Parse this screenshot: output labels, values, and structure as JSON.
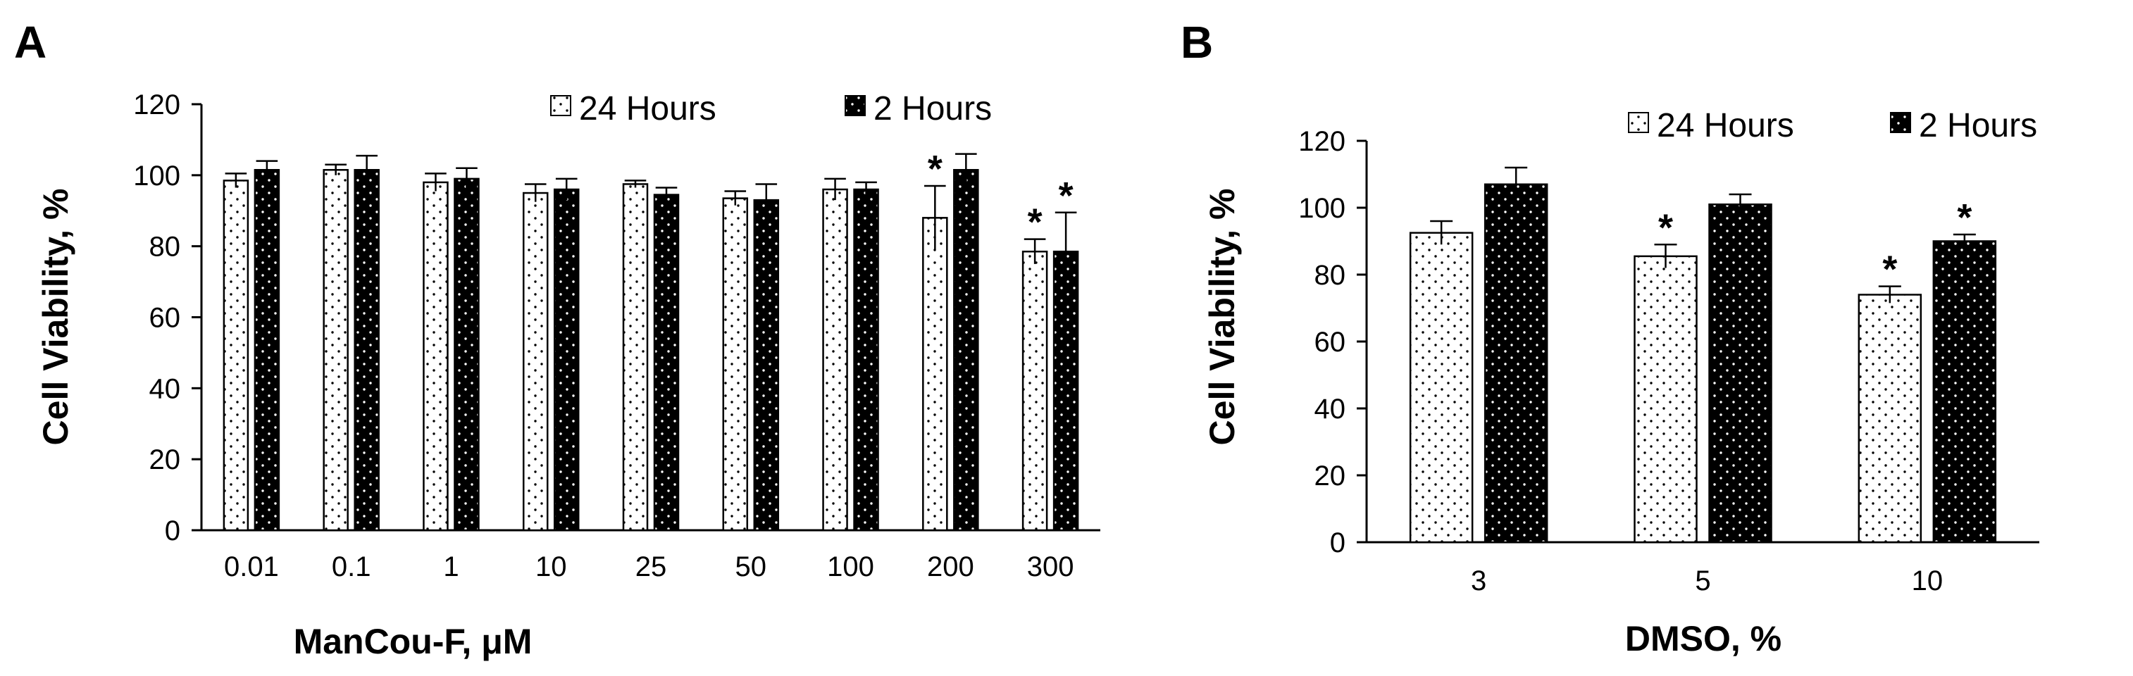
{
  "colors": {
    "white_bar": "#ffffff",
    "black_bar": "#000000",
    "axis": "#000000",
    "dots_on_white": "#000000",
    "dots_on_black": "#ffffff"
  },
  "chart_data": [
    {
      "panel": "A",
      "type": "bar",
      "xlabel": "ManCou-F, μM",
      "ylabel": "Cell Viability, %",
      "ylim": [
        0,
        120
      ],
      "yticks": [
        0,
        20,
        40,
        60,
        80,
        100,
        120
      ],
      "grid": false,
      "legend_position": "top-right",
      "categories": [
        "0.01",
        "0.1",
        "1",
        "10",
        "25",
        "50",
        "100",
        "200",
        "300"
      ],
      "series": [
        {
          "name": "24 Hours",
          "values": [
            98.5,
            101.5,
            98,
            95,
            97.5,
            93.5,
            96,
            88,
            78.5
          ],
          "errors": [
            2,
            1.5,
            2.5,
            2.5,
            1,
            2,
            3,
            9,
            3.5
          ],
          "significant": [
            false,
            false,
            false,
            false,
            false,
            false,
            false,
            true,
            true
          ]
        },
        {
          "name": "2 Hours",
          "values": [
            101.5,
            101.5,
            99,
            96,
            94.5,
            93,
            96,
            101.5,
            78.5
          ],
          "errors": [
            2.5,
            4,
            3,
            3,
            2,
            4.5,
            2,
            4.5,
            11
          ],
          "significant": [
            false,
            false,
            false,
            false,
            false,
            false,
            false,
            false,
            true
          ]
        }
      ],
      "annotation": "*"
    },
    {
      "panel": "B",
      "type": "bar",
      "xlabel": "DMSO, %",
      "ylabel": "Cell Viability, %",
      "ylim": [
        0,
        120
      ],
      "yticks": [
        0,
        20,
        40,
        60,
        80,
        100,
        120
      ],
      "grid": false,
      "legend_position": "top-right",
      "categories": [
        "3",
        "5",
        "10"
      ],
      "series": [
        {
          "name": "24 Hours",
          "values": [
            92.5,
            85.5,
            74
          ],
          "errors": [
            3.5,
            3.5,
            2.5
          ],
          "significant": [
            false,
            true,
            true
          ]
        },
        {
          "name": "2 Hours",
          "values": [
            107,
            101,
            90
          ],
          "errors": [
            5,
            3,
            2
          ],
          "significant": [
            false,
            false,
            true
          ]
        }
      ],
      "annotation": "*"
    }
  ]
}
